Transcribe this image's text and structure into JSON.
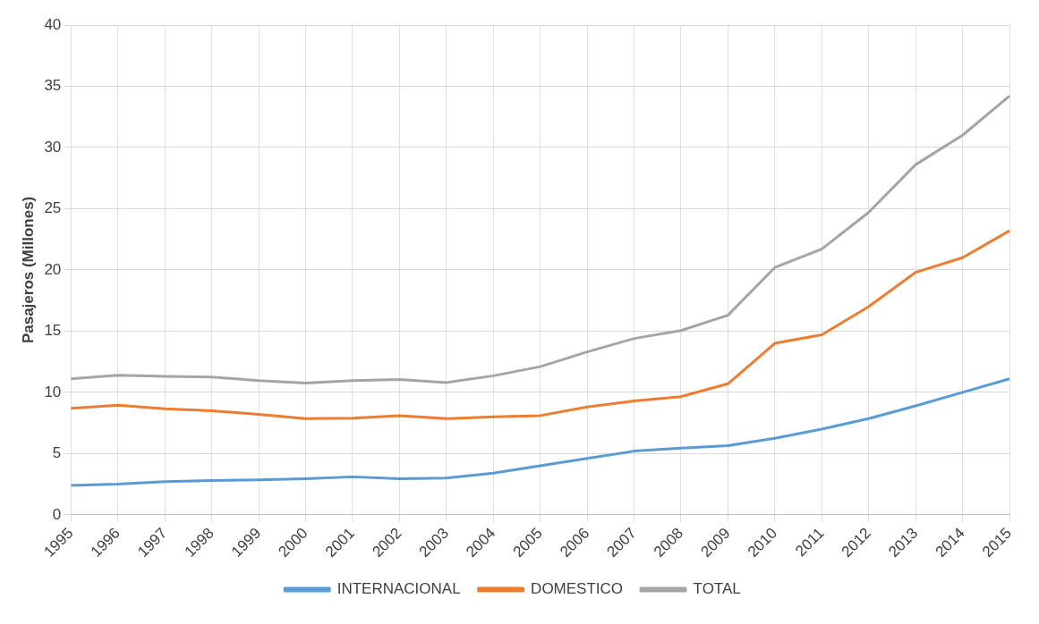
{
  "chart_data": {
    "type": "line",
    "ylabel": "Pasajeros (Millones)",
    "categories": [
      "1995",
      "1996",
      "1997",
      "1998",
      "1999",
      "2000",
      "2001",
      "2002",
      "2003",
      "2004",
      "2005",
      "2006",
      "2007",
      "2008",
      "2009",
      "2010",
      "2011",
      "2012",
      "2013",
      "2014",
      "2015"
    ],
    "series": [
      {
        "name": "INTERNACIONAL",
        "color": "#5b9bd5",
        "values": [
          2.4,
          2.5,
          2.7,
          2.8,
          2.85,
          2.95,
          3.1,
          2.95,
          3.0,
          3.4,
          4.0,
          4.6,
          5.2,
          5.45,
          5.65,
          6.25,
          7.0,
          7.85,
          8.9,
          10.0,
          11.1
        ]
      },
      {
        "name": "DOMESTICO",
        "color": "#ed7d31",
        "values": [
          8.7,
          8.95,
          8.65,
          8.5,
          8.2,
          7.85,
          7.9,
          8.1,
          7.85,
          8.0,
          8.1,
          8.8,
          9.3,
          9.65,
          10.7,
          14.0,
          14.7,
          17.0,
          19.8,
          21.0,
          23.2
        ]
      },
      {
        "name": "TOTAL",
        "color": "#a5a5a5",
        "values": [
          11.1,
          11.4,
          11.3,
          11.25,
          10.95,
          10.75,
          10.95,
          11.05,
          10.8,
          11.35,
          12.1,
          13.3,
          14.4,
          15.05,
          16.3,
          20.2,
          21.7,
          24.7,
          28.6,
          31.0,
          34.2
        ]
      }
    ],
    "ylim": [
      0,
      40
    ],
    "yticks": [
      0,
      5,
      10,
      15,
      20,
      25,
      30,
      35,
      40
    ],
    "grid": true,
    "legend": "bottom",
    "marker": "none",
    "line_style": "solid"
  }
}
